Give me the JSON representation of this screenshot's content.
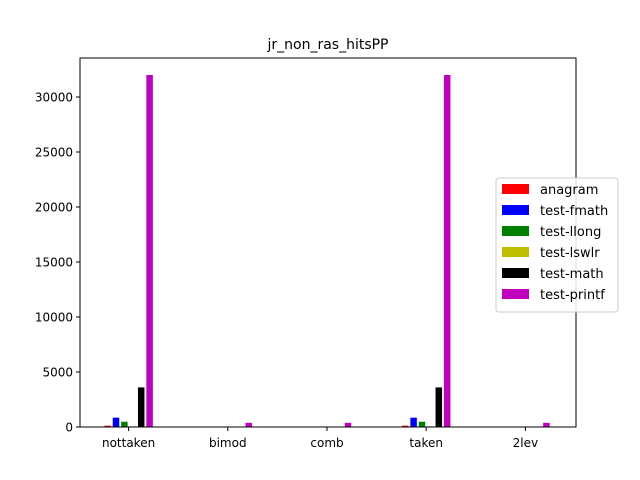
{
  "chart_data": {
    "type": "bar",
    "title": "jr_non_ras_hitsPP",
    "xlabel": "",
    "ylabel": "",
    "categories": [
      "nottaken",
      "bimod",
      "comb",
      "taken",
      "2lev"
    ],
    "ylim": [
      0,
      32000
    ],
    "yticks": [
      0,
      5000,
      10000,
      15000,
      20000,
      25000,
      30000
    ],
    "legend_position": "center-right",
    "grid": false,
    "series": [
      {
        "name": "anagram",
        "color": "#ff0000",
        "values": [
          120,
          0,
          0,
          120,
          0
        ]
      },
      {
        "name": "test-fmath",
        "color": "#0000ff",
        "values": [
          850,
          0,
          0,
          850,
          0
        ]
      },
      {
        "name": "test-llong",
        "color": "#008000",
        "values": [
          480,
          0,
          0,
          480,
          0
        ]
      },
      {
        "name": "test-lswlr",
        "color": "#bfbf00",
        "values": [
          60,
          0,
          0,
          60,
          0
        ]
      },
      {
        "name": "test-math",
        "color": "#000000",
        "values": [
          3600,
          0,
          0,
          3600,
          0
        ]
      },
      {
        "name": "test-printf",
        "color": "#bf00bf",
        "values": [
          32000,
          380,
          380,
          32000,
          380
        ]
      }
    ]
  }
}
